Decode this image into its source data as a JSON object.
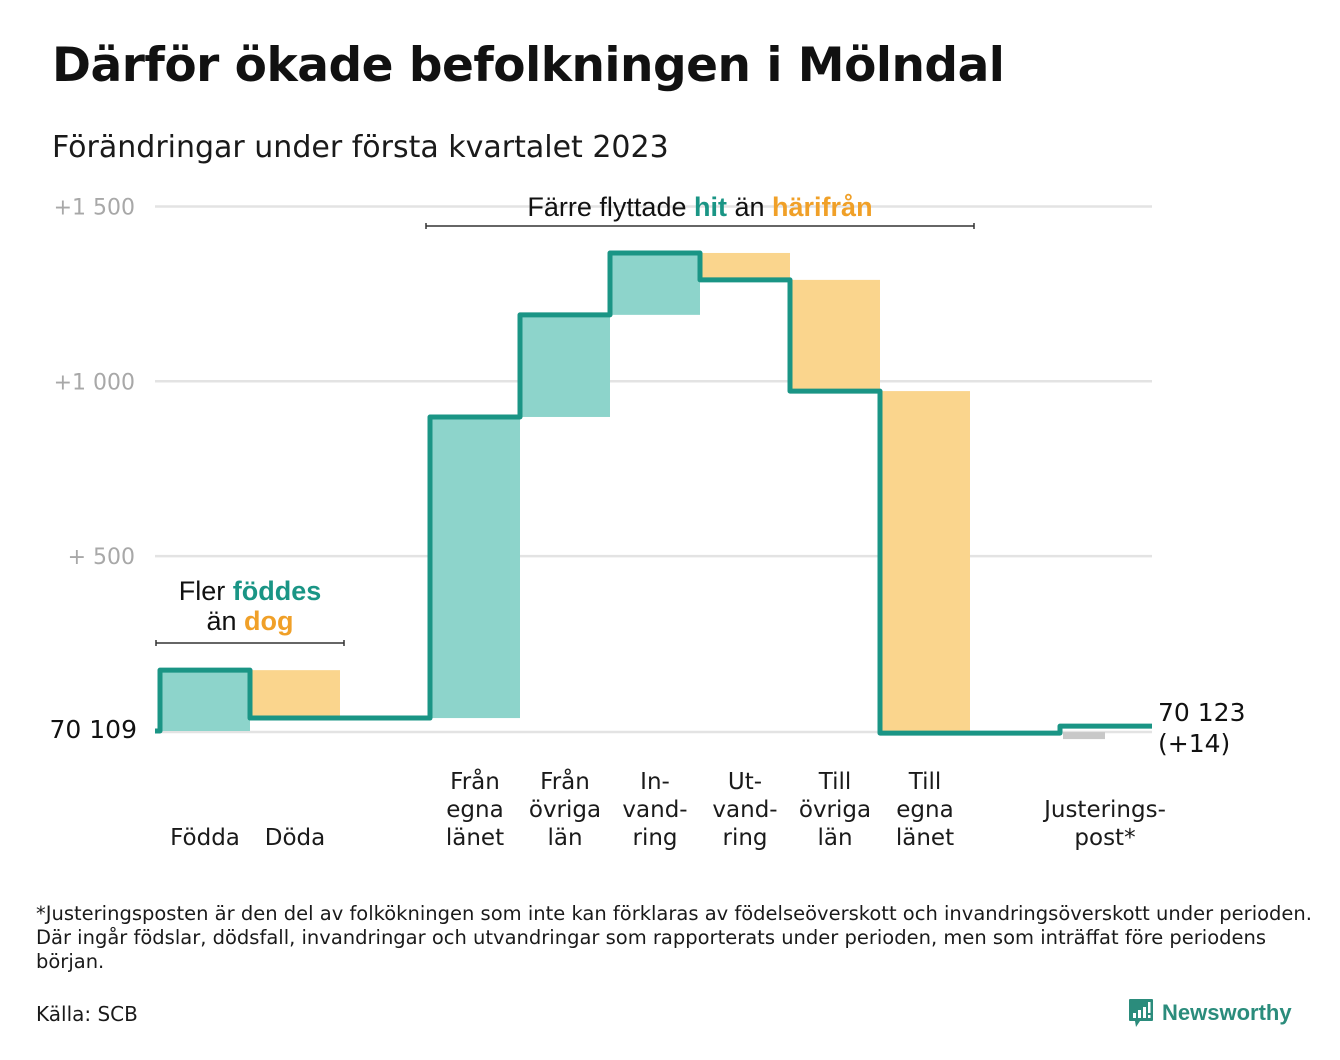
{
  "header": {
    "title": "Därför ökade befolkningen i Mölndal",
    "subtitle": "Förändringar under första kvartalet 2023"
  },
  "chart_data": {
    "type": "waterfall",
    "title": "Därför ökade befolkningen i Mölndal",
    "subtitle": "Förändringar under första kvartalet 2023",
    "start_value": 70109,
    "start_label": "70 109",
    "end_value": 70123,
    "end_label": "70 123",
    "end_change_label": "(+14)",
    "ylim": [
      -60,
      1560
    ],
    "yticks": [
      {
        "value": 500,
        "label": "+ 500"
      },
      {
        "value": 1000,
        "label": "+1 000"
      },
      {
        "value": 1500,
        "label": "+1 500"
      }
    ],
    "grid": true,
    "steps": [
      {
        "key": "fodda",
        "label_lines": [
          "Födda"
        ],
        "value": 174,
        "kind": "in"
      },
      {
        "key": "doda",
        "label_lines": [
          "Döda"
        ],
        "value": -137,
        "kind": "out"
      },
      {
        "key": "gap",
        "label_lines": [],
        "value": 0,
        "kind": "gap"
      },
      {
        "key": "fran-egna-lanet",
        "label_lines": [
          "Från",
          "egna",
          "länet"
        ],
        "value": 861,
        "kind": "in"
      },
      {
        "key": "fran-ovriga-lan",
        "label_lines": [
          "Från",
          "övriga",
          "län"
        ],
        "value": 292,
        "kind": "in"
      },
      {
        "key": "invandring",
        "label_lines": [
          "In-",
          "vand-",
          "ring"
        ],
        "value": 177,
        "kind": "in"
      },
      {
        "key": "utvandring",
        "label_lines": [
          "Ut-",
          "vand-",
          "ring"
        ],
        "value": -77,
        "kind": "out"
      },
      {
        "key": "till-ovriga-lan",
        "label_lines": [
          "Till",
          "övriga",
          "län"
        ],
        "value": -318,
        "kind": "out"
      },
      {
        "key": "till-egna-lanet",
        "label_lines": [
          "Till",
          "egna",
          "länet"
        ],
        "value": -978,
        "kind": "out"
      },
      {
        "key": "gap2",
        "label_lines": [],
        "value": 0,
        "kind": "gap"
      },
      {
        "key": "justeringspost",
        "label_lines": [
          "Justerings-",
          "post*"
        ],
        "value": 20,
        "kind": "adjust"
      }
    ],
    "annotations": [
      {
        "key": "births",
        "parts": [
          {
            "text": "Fler ",
            "style": "plain"
          },
          {
            "text": "föddes",
            "style": "hi"
          },
          {
            "newline": true
          },
          {
            "text": "än ",
            "style": "plain"
          },
          {
            "text": "dog",
            "style": "lo"
          }
        ],
        "spans_steps": [
          "fodda",
          "doda"
        ]
      },
      {
        "key": "migration",
        "parts": [
          {
            "text": "Färre flyttade ",
            "style": "plain"
          },
          {
            "text": "hit",
            "style": "hi"
          },
          {
            "text": " än ",
            "style": "plain"
          },
          {
            "text": "härifrån",
            "style": "lo"
          }
        ],
        "spans_steps": [
          "fran-egna-lanet",
          "till-egna-lanet"
        ]
      }
    ],
    "colors": {
      "line": "#1a9585",
      "increase": "#8dd4cb",
      "decrease": "#fad58d",
      "adjust": "#c8c8c8",
      "grid": "#e3e3e3",
      "tick": "#a8a8a8",
      "highlight_in": "#1a9585",
      "highlight_out": "#f0a028"
    }
  },
  "footer": {
    "footnote": "*Justeringsposten är den del av folkökningen som inte kan förklaras av födelseöverskott och invandringsöverskott under perioden. Där ingår födslar, dödsfall, invandringar och utvandringar som rapporterats under perioden, men som inträffat före periodens början.",
    "source": "Källa: SCB",
    "brand": "Newsworthy"
  }
}
